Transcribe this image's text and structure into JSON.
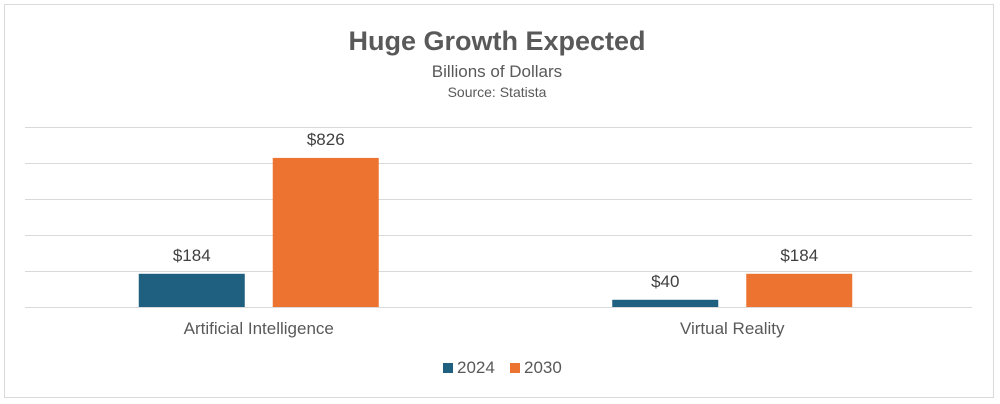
{
  "chart_data": {
    "type": "bar",
    "title": "Huge Growth Expected",
    "subtitle": "Billions of Dollars",
    "source": "Source: Statista",
    "categories": [
      "Artificial Intelligence",
      "Virtual Reality"
    ],
    "series": [
      {
        "name": "2024",
        "color": "#1f5f7f",
        "values": [
          184,
          40
        ],
        "labels": [
          "$184",
          "$40"
        ]
      },
      {
        "name": "2030",
        "color": "#ed7330",
        "values": [
          826,
          184
        ],
        "labels": [
          "$826",
          "$184"
        ]
      }
    ],
    "ylim": [
      0,
      1000
    ],
    "grid": true,
    "legend_position": "bottom",
    "xlabel": "",
    "ylabel": ""
  }
}
